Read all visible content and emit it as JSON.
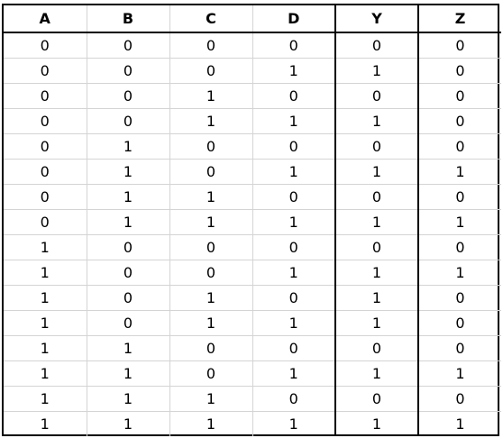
{
  "table": {
    "columns": [
      "A",
      "B",
      "C",
      "D",
      "Y",
      "Z"
    ],
    "rows": [
      [
        "0",
        "0",
        "0",
        "0",
        "0",
        "0"
      ],
      [
        "0",
        "0",
        "0",
        "1",
        "1",
        "0"
      ],
      [
        "0",
        "0",
        "1",
        "0",
        "0",
        "0"
      ],
      [
        "0",
        "0",
        "1",
        "1",
        "1",
        "0"
      ],
      [
        "0",
        "1",
        "0",
        "0",
        "0",
        "0"
      ],
      [
        "0",
        "1",
        "0",
        "1",
        "1",
        "1"
      ],
      [
        "0",
        "1",
        "1",
        "0",
        "0",
        "0"
      ],
      [
        "0",
        "1",
        "1",
        "1",
        "1",
        "1"
      ],
      [
        "1",
        "0",
        "0",
        "0",
        "0",
        "0"
      ],
      [
        "1",
        "0",
        "0",
        "1",
        "1",
        "1"
      ],
      [
        "1",
        "0",
        "1",
        "0",
        "1",
        "0"
      ],
      [
        "1",
        "0",
        "1",
        "1",
        "1",
        "0"
      ],
      [
        "1",
        "1",
        "0",
        "0",
        "0",
        "0"
      ],
      [
        "1",
        "1",
        "0",
        "1",
        "1",
        "1"
      ],
      [
        "1",
        "1",
        "1",
        "0",
        "0",
        "0"
      ],
      [
        "1",
        "1",
        "1",
        "1",
        "1",
        "1"
      ]
    ]
  }
}
